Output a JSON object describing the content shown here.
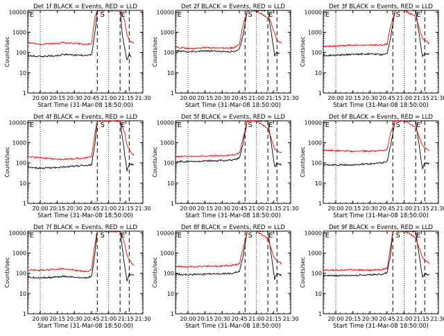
{
  "figure": {
    "xlabel": "Start Time (31-Mar-08 18:50:00)",
    "ylabel": "Counts/sec"
  },
  "chart_data": [
    {
      "type": "line",
      "title": "Det 1f BLACK = Events, RED = LLD",
      "xlabel": "Start Time (31-Mar-08 18:50:00)",
      "ylabel": "Counts/sec",
      "ylog": true,
      "ylim": [
        1,
        12000
      ],
      "xlim": [
        "19:49",
        "21:30"
      ],
      "x_tick_labels": [
        "20:00",
        "20:15",
        "20:30",
        "20:45",
        "21:00",
        "21:15",
        "21:30"
      ],
      "y_tick_labels": [
        "1",
        "10",
        "100",
        "1000",
        "10000"
      ],
      "markers": [
        "E",
        "S",
        "E"
      ],
      "series": [
        {
          "color": "#000000",
          "x": [
            "19:49",
            "20:00",
            "20:15",
            "20:20",
            "20:30",
            "20:40",
            "20:45",
            "20:48",
            "20:50",
            "21:10",
            "21:12",
            "21:16",
            "21:18",
            "21:20"
          ],
          "values": [
            70,
            65,
            70,
            80,
            75,
            70,
            80,
            1000,
            12000,
            12000,
            700,
            40,
            80,
            60
          ]
        },
        {
          "color": "#ff0000",
          "x": [
            "19:49",
            "20:00",
            "20:15",
            "20:20",
            "20:30",
            "20:40",
            "20:45",
            "20:48",
            "20:50",
            "21:10",
            "21:14",
            "21:16",
            "21:18",
            "21:22"
          ],
          "values": [
            300,
            260,
            280,
            310,
            280,
            250,
            280,
            6000,
            12000,
            12000,
            4000,
            800,
            400,
            280
          ]
        }
      ]
    },
    {
      "type": "line",
      "title": "Det 2f BLACK = Events, RED = LLD",
      "xlabel": "Start Time (31-Mar-08 18:50:00)",
      "ylabel": "Counts/sec",
      "ylog": true,
      "ylim": [
        1,
        12000
      ],
      "xlim": [
        "19:49",
        "21:30"
      ],
      "x_tick_labels": [
        "20:00",
        "20:15",
        "20:30",
        "20:45",
        "21:00",
        "21:15",
        "21:30"
      ],
      "y_tick_labels": [
        "1",
        "10",
        "100",
        "1000",
        "10000"
      ],
      "markers": [
        "E",
        "S",
        "E"
      ],
      "series": [
        {
          "color": "#000000",
          "x": [
            "19:49",
            "20:00",
            "20:15",
            "20:30",
            "20:40",
            "20:45",
            "20:48",
            "20:52",
            "21:10",
            "21:16",
            "21:18",
            "21:20"
          ],
          "values": [
            120,
            110,
            120,
            115,
            110,
            150,
            600,
            12000,
            12000,
            70,
            100,
            90
          ]
        },
        {
          "color": "#ff0000",
          "x": [
            "19:49",
            "20:00",
            "20:15",
            "20:30",
            "20:40",
            "20:45",
            "20:48",
            "20:52",
            "20:58",
            "21:05",
            "21:12",
            "21:18",
            "21:22"
          ],
          "values": [
            180,
            160,
            175,
            165,
            170,
            250,
            2000,
            12000,
            12000,
            8000,
            4000,
            400,
            280
          ]
        }
      ]
    },
    {
      "type": "line",
      "title": "Det 3f BLACK = Events, RED = LLD",
      "xlabel": "Start Time (31-Mar-08 18:50:00)",
      "ylabel": "Counts/sec",
      "ylog": true,
      "ylim": [
        1,
        12000
      ],
      "xlim": [
        "19:49",
        "21:30"
      ],
      "x_tick_labels": [
        "20:00",
        "20:15",
        "20:30",
        "20:45",
        "21:00",
        "21:15",
        "21:30"
      ],
      "y_tick_labels": [
        "1",
        "10",
        "100",
        "1000",
        "10000"
      ],
      "markers": [
        "E",
        "S",
        "E"
      ],
      "series": [
        {
          "color": "#000000",
          "x": [
            "19:49",
            "20:00",
            "20:15",
            "20:30",
            "20:40",
            "20:45",
            "20:48",
            "20:52",
            "21:10",
            "21:16",
            "21:18",
            "21:22"
          ],
          "values": [
            70,
            75,
            80,
            85,
            80,
            90,
            500,
            12000,
            12000,
            60,
            90,
            80
          ]
        },
        {
          "color": "#ff0000",
          "x": [
            "19:49",
            "20:00",
            "20:15",
            "20:30",
            "20:40",
            "20:45",
            "20:48",
            "20:52",
            "21:00",
            "21:10",
            "21:16",
            "21:22"
          ],
          "values": [
            200,
            210,
            230,
            240,
            230,
            260,
            2000,
            12000,
            12000,
            6000,
            500,
            280
          ]
        }
      ]
    },
    {
      "type": "line",
      "title": "Det 4f BLACK = Events, RED = LLD",
      "xlabel": "Start Time (31-Mar-08 18:50:00)",
      "ylabel": "Counts/sec",
      "ylog": true,
      "ylim": [
        1,
        12000
      ],
      "xlim": [
        "19:49",
        "21:30"
      ],
      "x_tick_labels": [
        "20:00",
        "20:15",
        "20:30",
        "20:45",
        "21:00",
        "21:15",
        "21:30"
      ],
      "y_tick_labels": [
        "1",
        "10",
        "100",
        "1000",
        "10000"
      ],
      "markers": [
        "E",
        "S",
        "E"
      ],
      "series": [
        {
          "color": "#000000",
          "x": [
            "19:49",
            "20:00",
            "20:15",
            "20:30",
            "20:40",
            "20:45",
            "20:48",
            "20:50",
            "21:10",
            "21:13",
            "21:16",
            "21:18",
            "21:22"
          ],
          "values": [
            60,
            55,
            60,
            70,
            75,
            80,
            1000,
            12000,
            12000,
            700,
            40,
            90,
            80
          ]
        },
        {
          "color": "#ff0000",
          "x": [
            "19:49",
            "20:00",
            "20:15",
            "20:30",
            "20:40",
            "20:45",
            "20:48",
            "20:50",
            "21:10",
            "21:14",
            "21:16",
            "21:20",
            "21:22"
          ],
          "values": [
            200,
            180,
            150,
            160,
            180,
            200,
            3000,
            12000,
            12000,
            3000,
            800,
            300,
            250
          ]
        }
      ]
    },
    {
      "type": "line",
      "title": "Det 5f BLACK = Events, RED = LLD",
      "xlabel": "Start Time (31-Mar-08 18:50:00)",
      "ylabel": "Counts/sec",
      "ylog": true,
      "ylim": [
        1,
        12000
      ],
      "xlim": [
        "19:49",
        "21:30"
      ],
      "x_tick_labels": [
        "20:00",
        "20:15",
        "20:30",
        "20:45",
        "21:00",
        "21:15",
        "21:30"
      ],
      "y_tick_labels": [
        "1",
        "10",
        "100",
        "1000",
        "10000"
      ],
      "markers": [
        "E",
        "S",
        "E"
      ],
      "series": [
        {
          "color": "#000000",
          "x": [
            "19:49",
            "20:00",
            "20:15",
            "20:30",
            "20:40",
            "20:45",
            "20:48",
            "20:52",
            "21:10",
            "21:16",
            "21:18",
            "21:22"
          ],
          "values": [
            120,
            115,
            125,
            130,
            140,
            170,
            800,
            12000,
            12000,
            60,
            100,
            80
          ]
        },
        {
          "color": "#ff0000",
          "x": [
            "19:49",
            "20:00",
            "20:15",
            "20:30",
            "20:40",
            "20:45",
            "20:48",
            "20:52",
            "21:00",
            "21:10",
            "21:16",
            "21:22"
          ],
          "values": [
            200,
            210,
            220,
            230,
            250,
            300,
            1500,
            12000,
            12000,
            5000,
            500,
            300
          ]
        }
      ]
    },
    {
      "type": "line",
      "title": "Det 6f BLACK = Events, RED = LLD",
      "xlabel": "Start Time (31-Mar-08 18:50:00)",
      "ylabel": "Counts/sec",
      "ylog": true,
      "ylim": [
        1,
        12000
      ],
      "xlim": [
        "19:49",
        "21:30"
      ],
      "x_tick_labels": [
        "20:00",
        "20:15",
        "20:30",
        "20:45",
        "21:00",
        "21:15",
        "21:30"
      ],
      "y_tick_labels": [
        "1",
        "10",
        "100",
        "1000",
        "10000"
      ],
      "markers": [
        "E",
        "S",
        "E"
      ],
      "series": [
        {
          "color": "#000000",
          "x": [
            "19:49",
            "20:00",
            "20:15",
            "20:30",
            "20:40",
            "20:45",
            "20:48",
            "20:52",
            "21:10",
            "21:16",
            "21:18",
            "21:22"
          ],
          "values": [
            80,
            78,
            82,
            90,
            100,
            120,
            700,
            12000,
            12000,
            50,
            100,
            90
          ]
        },
        {
          "color": "#ff0000",
          "x": [
            "19:49",
            "20:00",
            "20:15",
            "20:30",
            "20:40",
            "20:45",
            "20:48",
            "20:52",
            "21:00",
            "21:10",
            "21:16",
            "21:22"
          ],
          "values": [
            420,
            400,
            380,
            380,
            400,
            450,
            3000,
            12000,
            12000,
            6000,
            700,
            400
          ]
        }
      ]
    },
    {
      "type": "line",
      "title": "Det 7f BLACK = Events, RED = LLD",
      "xlabel": "Start Time (31-Mar-08 18:50:00)",
      "ylabel": "Counts/sec",
      "ylog": true,
      "ylim": [
        1,
        12000
      ],
      "xlim": [
        "19:49",
        "21:30"
      ],
      "x_tick_labels": [
        "20:00",
        "20:15",
        "20:30",
        "20:45",
        "21:00",
        "21:15",
        "21:30"
      ],
      "y_tick_labels": [
        "1",
        "10",
        "100",
        "1000",
        "10000"
      ],
      "markers": [
        "E",
        "S",
        "E"
      ],
      "series": [
        {
          "color": "#000000",
          "x": [
            "19:49",
            "20:00",
            "20:15",
            "20:20",
            "20:30",
            "20:40",
            "20:45",
            "20:48",
            "20:50",
            "21:10",
            "21:13",
            "21:16",
            "21:18",
            "21:22"
          ],
          "values": [
            65,
            60,
            65,
            70,
            65,
            60,
            70,
            1000,
            12000,
            12000,
            600,
            40,
            90,
            80
          ]
        },
        {
          "color": "#ff0000",
          "x": [
            "19:49",
            "20:00",
            "20:15",
            "20:20",
            "20:30",
            "20:40",
            "20:45",
            "20:48",
            "20:50",
            "21:10",
            "21:14",
            "21:16",
            "21:20",
            "21:22"
          ],
          "values": [
            150,
            140,
            160,
            170,
            140,
            120,
            150,
            3000,
            12000,
            12000,
            3000,
            800,
            300,
            250
          ]
        }
      ]
    },
    {
      "type": "line",
      "title": "Det 8f BLACK = Events, RED = LLD",
      "xlabel": "Start Time (31-Mar-08 18:50:00)",
      "ylabel": "Counts/sec",
      "ylog": true,
      "ylim": [
        1,
        12000
      ],
      "xlim": [
        "19:49",
        "21:30"
      ],
      "x_tick_labels": [
        "20:00",
        "20:15",
        "20:30",
        "20:45",
        "21:00",
        "21:15",
        "21:30"
      ],
      "y_tick_labels": [
        "1",
        "10",
        "100",
        "1000",
        "10000"
      ],
      "markers": [
        "E",
        "S",
        "E"
      ],
      "series": [
        {
          "color": "#000000",
          "x": [
            "19:49",
            "20:00",
            "20:15",
            "20:30",
            "20:40",
            "20:45",
            "20:48",
            "20:52",
            "21:10",
            "21:16",
            "21:18",
            "21:22"
          ],
          "values": [
            90,
            85,
            90,
            95,
            100,
            130,
            600,
            12000,
            12000,
            50,
            100,
            80
          ]
        },
        {
          "color": "#ff0000",
          "x": [
            "19:49",
            "20:00",
            "20:15",
            "20:30",
            "20:40",
            "20:45",
            "20:48",
            "20:52",
            "21:00",
            "21:10",
            "21:16",
            "21:22"
          ],
          "values": [
            220,
            210,
            220,
            230,
            250,
            300,
            1500,
            12000,
            12000,
            5000,
            500,
            300
          ]
        }
      ]
    },
    {
      "type": "line",
      "title": "Det 9f BLACK = Events, RED = LLD",
      "xlabel": "Start Time (31-Mar-08 18:50:00)",
      "ylabel": "Counts/sec",
      "ylog": true,
      "ylim": [
        1,
        12000
      ],
      "xlim": [
        "19:49",
        "21:30"
      ],
      "x_tick_labels": [
        "20:00",
        "20:15",
        "20:30",
        "20:45",
        "21:00",
        "21:15",
        "21:30"
      ],
      "y_tick_labels": [
        "1",
        "10",
        "100",
        "1000",
        "10000"
      ],
      "markers": [
        "E",
        "S",
        "E"
      ],
      "series": [
        {
          "color": "#000000",
          "x": [
            "19:49",
            "20:00",
            "20:15",
            "20:30",
            "20:40",
            "20:45",
            "20:48",
            "20:50",
            "21:10",
            "21:16",
            "21:18",
            "21:22"
          ],
          "values": [
            80,
            75,
            80,
            85,
            90,
            110,
            800,
            12000,
            12000,
            60,
            100,
            80
          ]
        },
        {
          "color": "#ff0000",
          "x": [
            "19:49",
            "20:00",
            "20:15",
            "20:30",
            "20:40",
            "20:45",
            "20:48",
            "20:50",
            "21:00",
            "21:10",
            "21:16",
            "21:22"
          ],
          "values": [
            150,
            140,
            150,
            140,
            150,
            180,
            2000,
            12000,
            12000,
            6000,
            600,
            300
          ]
        }
      ]
    }
  ]
}
